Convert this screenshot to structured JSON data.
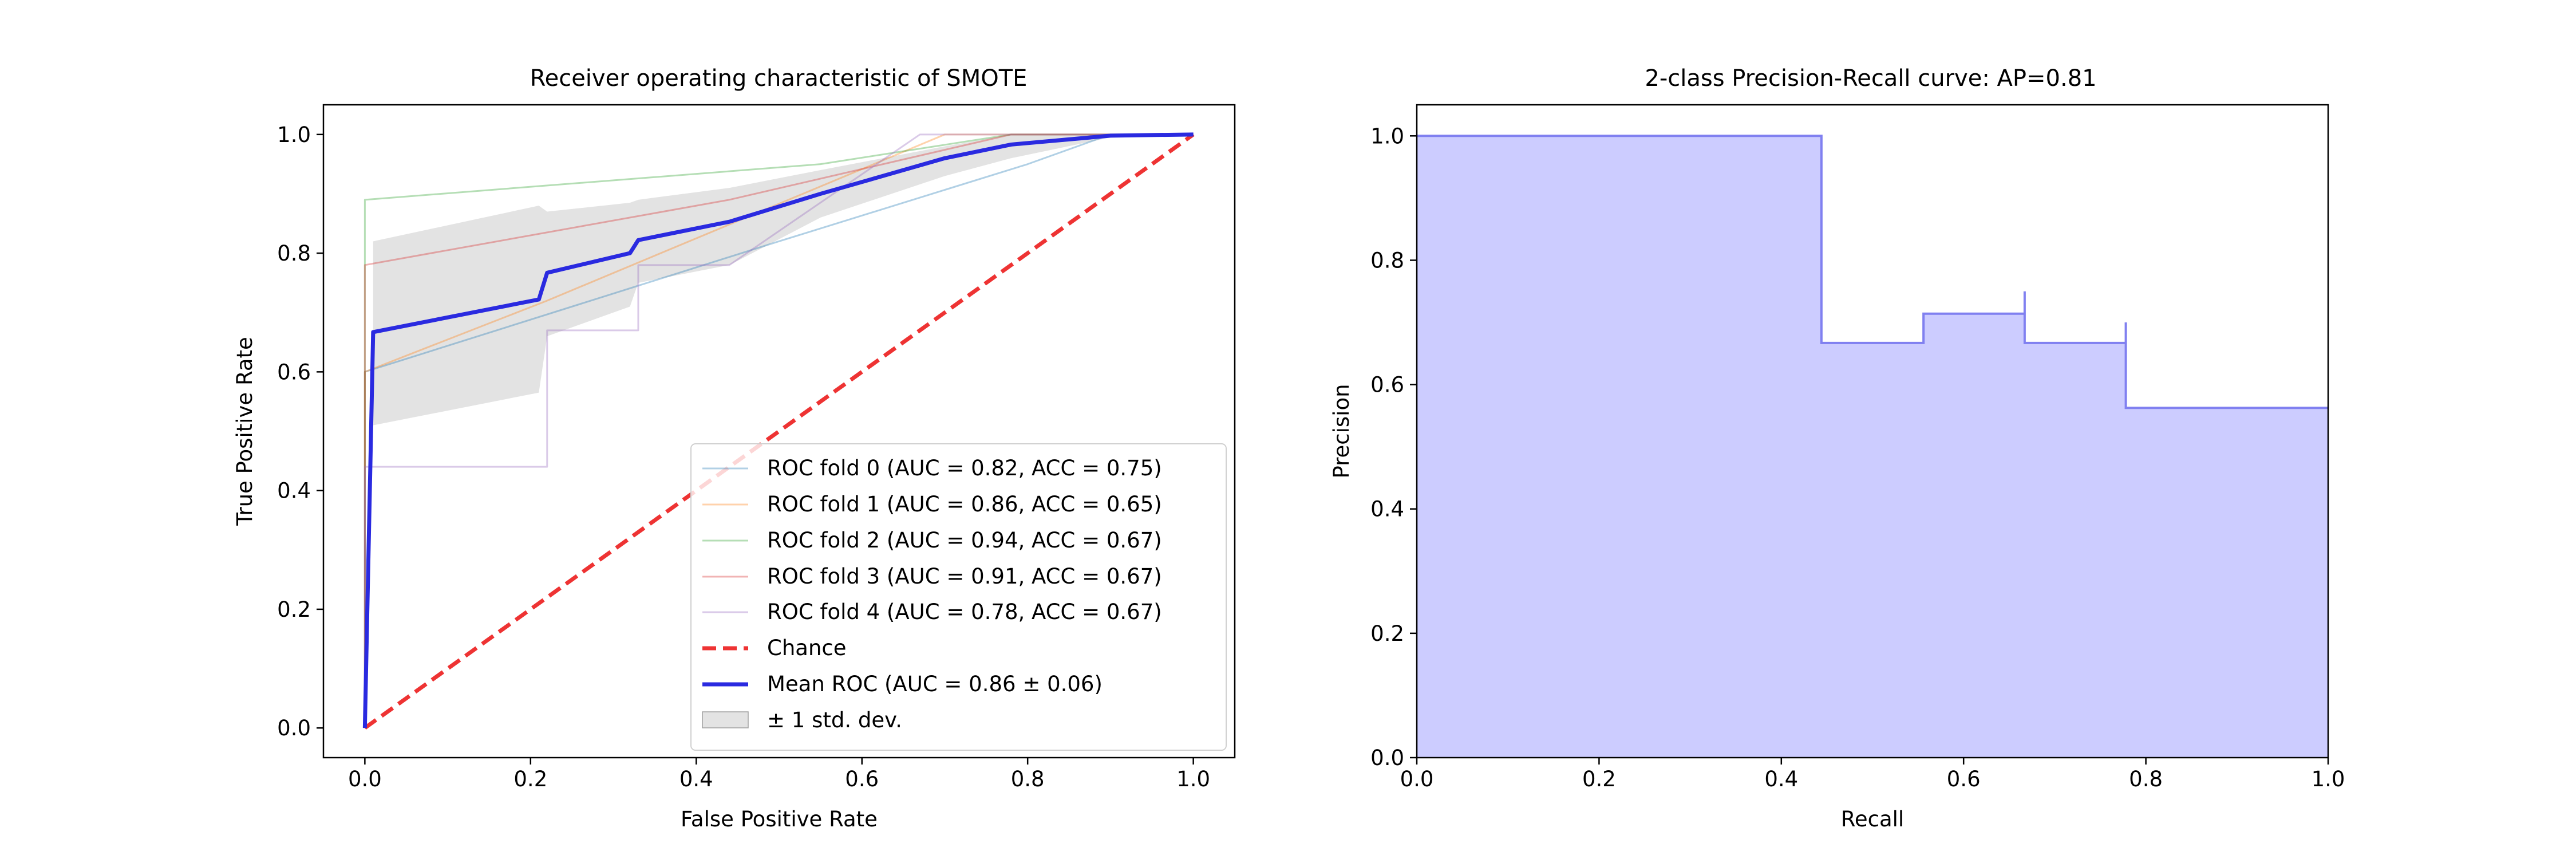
{
  "chart_data": [
    {
      "type": "line",
      "title": "Receiver operating characteristic of SMOTE",
      "xlabel": "False Positive Rate",
      "ylabel": "True Positive Rate",
      "xlim": [
        -0.05,
        1.05
      ],
      "ylim": [
        -0.05,
        1.05
      ],
      "xticks": [
        "0.0",
        "0.2",
        "0.4",
        "0.6",
        "0.8",
        "1.0"
      ],
      "yticks": [
        "0.0",
        "0.2",
        "0.4",
        "0.6",
        "0.8",
        "1.0"
      ],
      "grid": false,
      "legend_position": "lower-right",
      "series": [
        {
          "name": "ROC fold 0 (AUC = 0.82, ACC = 0.75)",
          "color": "#1f77b4",
          "x": [
            0,
            0,
            0.5,
            0.8,
            0.9,
            1
          ],
          "y": [
            0,
            0.6,
            0.82,
            0.95,
            1,
            1
          ]
        },
        {
          "name": "ROC fold 1 (AUC = 0.86, ACC = 0.65)",
          "color": "#ff7f0e",
          "x": [
            0,
            0,
            0.22,
            0.7,
            0.8,
            1
          ],
          "y": [
            0,
            0.6,
            0.72,
            1,
            1,
            1
          ]
        },
        {
          "name": "ROC fold 2 (AUC = 0.94, ACC = 0.67)",
          "color": "#2ca02c",
          "x": [
            0,
            0,
            0.55,
            0.78,
            1
          ],
          "y": [
            0,
            0.89,
            0.95,
            1,
            1
          ]
        },
        {
          "name": "ROC fold 3 (AUC = 0.91, ACC = 0.67)",
          "color": "#d62728",
          "x": [
            0,
            0,
            0.44,
            0.78,
            1
          ],
          "y": [
            0,
            0.78,
            0.89,
            1,
            1
          ]
        },
        {
          "name": "ROC fold 4 (AUC = 0.78, ACC = 0.67)",
          "color": "#9467bd",
          "x": [
            0,
            0,
            0.11,
            0.22,
            0.22,
            0.33,
            0.33,
            0.44,
            0.67,
            0.78,
            1
          ],
          "y": [
            0,
            0.44,
            0.44,
            0.44,
            0.67,
            0.67,
            0.78,
            0.78,
            1,
            1,
            1
          ]
        },
        {
          "name": "Chance",
          "color": "#ee3333",
          "dashed": true,
          "x": [
            0,
            1
          ],
          "y": [
            0,
            1
          ]
        },
        {
          "name": "Mean ROC (AUC = 0.86 ± 0.06)",
          "color": "#2a2ae0",
          "bold": true,
          "x": [
            0,
            0.01,
            0.21,
            0.22,
            0.32,
            0.33,
            0.44,
            0.55,
            0.7,
            0.78,
            0.9,
            1
          ],
          "y": [
            0,
            0.667,
            0.722,
            0.767,
            0.8,
            0.822,
            0.853,
            0.9,
            0.96,
            0.983,
            0.998,
            1
          ]
        }
      ],
      "std_band": {
        "name": "± 1 std. dev.",
        "color": "#c0c0c0",
        "x": [
          0.01,
          0.21,
          0.22,
          0.32,
          0.33,
          0.44,
          0.55,
          0.7,
          0.78,
          0.9,
          1
        ],
        "upper": [
          0.82,
          0.88,
          0.87,
          0.885,
          0.89,
          0.91,
          0.94,
          0.98,
          1,
          1,
          1
        ],
        "lower": [
          0.51,
          0.565,
          0.66,
          0.71,
          0.75,
          0.78,
          0.86,
          0.93,
          0.96,
          0.995,
          1
        ]
      }
    },
    {
      "type": "area",
      "title": "2-class Precision-Recall curve: AP=0.81",
      "xlabel": "Recall",
      "ylabel": "Precision",
      "xlim": [
        0,
        1
      ],
      "ylim": [
        0,
        1.05
      ],
      "xticks": [
        "0.0",
        "0.2",
        "0.4",
        "0.6",
        "0.8",
        "1.0"
      ],
      "yticks": [
        "0.0",
        "0.2",
        "0.4",
        "0.6",
        "0.8",
        "1.0"
      ],
      "grid": false,
      "fill_color": "#ccccff",
      "line_color": "#8080f0",
      "recall": [
        1.0,
        0.778,
        0.778,
        0.667,
        0.667,
        0.556,
        0.444,
        0.444,
        0.0
      ],
      "precision": [
        0.5625,
        0.5625,
        0.7,
        0.667,
        0.75,
        0.714,
        0.667,
        1.0,
        1.0
      ]
    }
  ]
}
